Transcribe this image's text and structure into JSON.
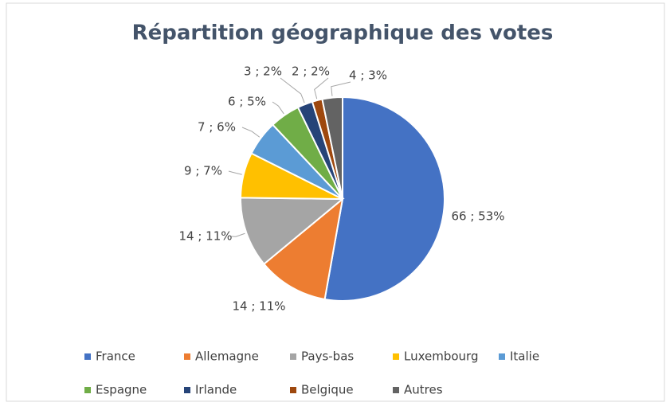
{
  "chart_data": {
    "type": "pie",
    "title": "Répartition géographique des votes",
    "categories": [
      "France",
      "Allemagne",
      "Pays-bas",
      "Luxembourg",
      "Italie",
      "Espagne",
      "Irlande",
      "Belgique",
      "Autres"
    ],
    "values": [
      66,
      14,
      14,
      9,
      7,
      6,
      3,
      2,
      4
    ],
    "value_labels": [
      "66 ; 53%",
      "14 ; 11%",
      "14 ; 11%",
      "9 ; 7%",
      "7 ; 6%",
      "6 ; 5%",
      "3 ; 2%",
      "2 ; 2%",
      "4 ; 3%"
    ],
    "colors": [
      "#4472c4",
      "#ed7d31",
      "#a5a5a5",
      "#ffc000",
      "#5b9bd5",
      "#70ad47",
      "#264478",
      "#9e480e",
      "#636363"
    ]
  }
}
